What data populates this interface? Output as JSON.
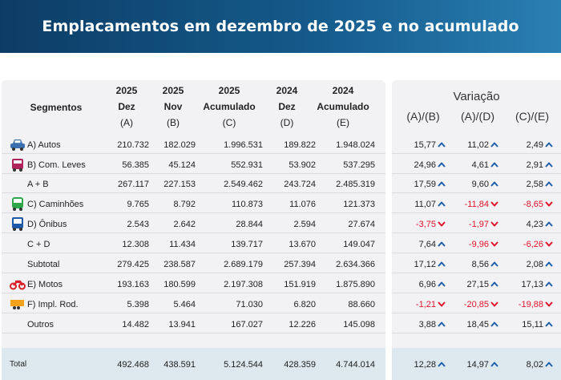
{
  "title": "Emplacamentos em dezembro de 2025 e no acumulado",
  "headers": {
    "segment": "Segmentos",
    "columns": [
      {
        "l1": "2025",
        "l2": "Dez",
        "l3": "(A)"
      },
      {
        "l1": "2025",
        "l2": "Nov",
        "l3": "(B)"
      },
      {
        "l1": "2025",
        "l2": "Acumulado",
        "l3": "(C)"
      },
      {
        "l1": "2024",
        "l2": "Dez",
        "l3": "(D)"
      },
      {
        "l1": "2024",
        "l2": "Acumulado",
        "l3": "(E)"
      }
    ],
    "variation_title": "Variação",
    "variation": [
      "(A)/(B)",
      "(A)/(D)",
      "(C)/(E)"
    ]
  },
  "colors": {
    "up": "#1f5fa8",
    "down": "#e0142a"
  },
  "rows": [
    {
      "label": "A) Autos",
      "icon": "car-icon",
      "icon_color": "#3a6fb0",
      "values": [
        "210.732",
        "182.029",
        "1.996.531",
        "189.822",
        "1.948.024"
      ],
      "var": [
        {
          "v": "15,77",
          "dir": "up"
        },
        {
          "v": "11,02",
          "dir": "up"
        },
        {
          "v": "2,49",
          "dir": "up"
        }
      ]
    },
    {
      "label": "B) Com. Leves",
      "icon": "van-icon",
      "icon_color": "#b0245c",
      "values": [
        "56.385",
        "45.124",
        "552.931",
        "53.902",
        "537.295"
      ],
      "var": [
        {
          "v": "24,96",
          "dir": "up"
        },
        {
          "v": "4,61",
          "dir": "up"
        },
        {
          "v": "2,91",
          "dir": "up"
        }
      ]
    },
    {
      "label": "A + B",
      "icon": "",
      "values": [
        "267.117",
        "227.153",
        "2.549.462",
        "243.724",
        "2.485.319"
      ],
      "var": [
        {
          "v": "17,59",
          "dir": "up"
        },
        {
          "v": "9,60",
          "dir": "up"
        },
        {
          "v": "2,58",
          "dir": "up"
        }
      ]
    },
    {
      "label": "C) Caminhões",
      "icon": "truck-icon",
      "icon_color": "#2ea64a",
      "values": [
        "9.765",
        "8.792",
        "110.873",
        "11.076",
        "121.373"
      ],
      "var": [
        {
          "v": "11,07",
          "dir": "up"
        },
        {
          "v": "-11,84",
          "dir": "down"
        },
        {
          "v": "-8,65",
          "dir": "down"
        }
      ]
    },
    {
      "label": "D) Ônibus",
      "icon": "bus-icon",
      "icon_color": "#1e5aa8",
      "values": [
        "2.543",
        "2.642",
        "28.844",
        "2.594",
        "27.674"
      ],
      "var": [
        {
          "v": "-3,75",
          "dir": "down"
        },
        {
          "v": "-1,97",
          "dir": "down"
        },
        {
          "v": "4,23",
          "dir": "up"
        }
      ]
    },
    {
      "label": "C + D",
      "icon": "",
      "values": [
        "12.308",
        "11.434",
        "139.717",
        "13.670",
        "149.047"
      ],
      "var": [
        {
          "v": "7,64",
          "dir": "up"
        },
        {
          "v": "-9,96",
          "dir": "down"
        },
        {
          "v": "-6,26",
          "dir": "down"
        }
      ]
    },
    {
      "label": "Subtotal",
      "icon": "",
      "values": [
        "279.425",
        "238.587",
        "2.689.179",
        "257.394",
        "2.634.366"
      ],
      "var": [
        {
          "v": "17,12",
          "dir": "up"
        },
        {
          "v": "8,56",
          "dir": "up"
        },
        {
          "v": "2,08",
          "dir": "up"
        }
      ]
    },
    {
      "label": "E) Motos",
      "icon": "motorcycle-icon",
      "icon_color": "#d81f2a",
      "values": [
        "193.163",
        "180.599",
        "2.197.308",
        "151.919",
        "1.875.890"
      ],
      "var": [
        {
          "v": "6,96",
          "dir": "up"
        },
        {
          "v": "27,15",
          "dir": "up"
        },
        {
          "v": "17,13",
          "dir": "up"
        }
      ]
    },
    {
      "label": "F) Impl. Rod.",
      "icon": "trailer-icon",
      "icon_color": "#f2a31b",
      "values": [
        "5.398",
        "5.464",
        "71.030",
        "6.820",
        "88.660"
      ],
      "var": [
        {
          "v": "-1,21",
          "dir": "down"
        },
        {
          "v": "-20,85",
          "dir": "down"
        },
        {
          "v": "-19,88",
          "dir": "down"
        }
      ]
    },
    {
      "label": "Outros",
      "icon": "",
      "values": [
        "14.482",
        "13.941",
        "167.027",
        "12.226",
        "145.098"
      ],
      "var": [
        {
          "v": "3,88",
          "dir": "up"
        },
        {
          "v": "18,45",
          "dir": "up"
        },
        {
          "v": "15,11",
          "dir": "up"
        }
      ]
    }
  ],
  "total": {
    "label": "Total",
    "values": [
      "492.468",
      "438.591",
      "5.124.544",
      "428.359",
      "4.744.014"
    ],
    "var": [
      {
        "v": "12,28",
        "dir": "up"
      },
      {
        "v": "14,97",
        "dir": "up"
      },
      {
        "v": "8,02",
        "dir": "up"
      }
    ]
  }
}
